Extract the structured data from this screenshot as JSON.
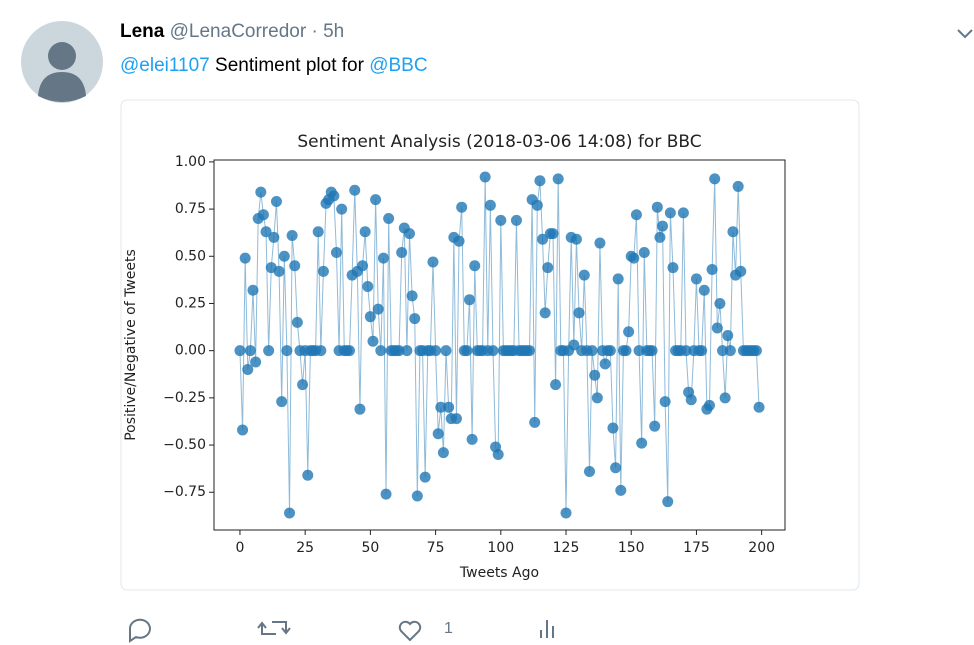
{
  "tweet": {
    "name": "Lena",
    "handle": "@LenaCorredor",
    "separator": "·",
    "time": "5h",
    "mention": "@elei1107",
    "text": "Sentiment plot for",
    "tag": "@BBC",
    "likes": "1"
  },
  "chart_data": {
    "type": "line",
    "title": "Sentiment Analysis (2018-03-06 14:08) for BBC",
    "x_label": "Tweets Ago",
    "y_label": "Positive/Negative of Tweets",
    "color": "#1f77b4",
    "markers": true,
    "xlim": [
      -9.95,
      208.95
    ],
    "ylim": [
      -0.95,
      1.01
    ],
    "xticks": [
      0,
      25,
      50,
      75,
      100,
      125,
      150,
      175,
      200
    ],
    "yticks": [
      {
        "value": -0.75,
        "label": "−0.75"
      },
      {
        "value": -0.5,
        "label": "−0.50"
      },
      {
        "value": -0.25,
        "label": "−0.25"
      },
      {
        "value": 0,
        "label": "0.00"
      },
      {
        "value": 0.25,
        "label": "0.25"
      },
      {
        "value": 0.5,
        "label": "0.50"
      },
      {
        "value": 0.75,
        "label": "0.75"
      },
      {
        "value": 1,
        "label": "1.00"
      }
    ],
    "x": [
      0,
      1,
      2,
      3,
      4,
      5,
      6,
      7,
      8,
      9,
      10,
      11,
      12,
      13,
      14,
      15,
      16,
      17,
      18,
      19,
      20,
      21,
      22,
      23,
      24,
      25,
      26,
      27,
      28,
      29,
      30,
      31,
      32,
      33,
      34,
      35,
      36,
      37,
      38,
      39,
      40,
      41,
      42,
      43,
      44,
      45,
      46,
      47,
      48,
      49,
      50,
      51,
      52,
      53,
      54,
      55,
      56,
      57,
      58,
      59,
      60,
      61,
      62,
      63,
      64,
      65,
      66,
      67,
      68,
      69,
      70,
      71,
      72,
      73,
      74,
      75,
      76,
      77,
      78,
      79,
      80,
      81,
      82,
      83,
      84,
      85,
      86,
      87,
      88,
      89,
      90,
      91,
      92,
      93,
      94,
      95,
      96,
      97,
      98,
      99,
      100,
      101,
      102,
      103,
      104,
      105,
      106,
      107,
      108,
      109,
      110,
      111,
      112,
      113,
      114,
      115,
      116,
      117,
      118,
      119,
      120,
      121,
      122,
      123,
      124,
      125,
      126,
      127,
      128,
      129,
      130,
      131,
      132,
      133,
      134,
      135,
      136,
      137,
      138,
      139,
      140,
      141,
      142,
      143,
      144,
      145,
      146,
      147,
      148,
      149,
      150,
      151,
      152,
      153,
      154,
      155,
      156,
      157,
      158,
      159,
      160,
      161,
      162,
      163,
      164,
      165,
      166,
      167,
      168,
      169,
      170,
      171,
      172,
      173,
      174,
      175,
      176,
      177,
      178,
      179,
      180,
      181,
      182,
      183,
      184,
      185,
      186,
      187,
      188,
      189,
      190,
      191,
      192,
      193,
      194,
      195,
      196,
      197,
      198,
      199
    ],
    "values": [
      0,
      -0.42,
      0.49,
      -0.1,
      0,
      0.32,
      -0.06,
      0.7,
      0.84,
      0.72,
      0.63,
      0,
      0.44,
      0.6,
      0.79,
      0.42,
      -0.27,
      0.5,
      0,
      -0.86,
      0.61,
      0.45,
      0.15,
      0,
      -0.18,
      0,
      -0.66,
      0,
      0,
      0,
      0.63,
      0,
      0.42,
      0.78,
      0.8,
      0.84,
      0.82,
      0.52,
      0,
      0.75,
      0,
      0,
      0,
      0.4,
      0.85,
      0.42,
      -0.31,
      0.45,
      0.63,
      0.34,
      0.18,
      0.05,
      0.8,
      0.22,
      0,
      0.49,
      -0.76,
      0.7,
      0,
      0,
      0,
      0,
      0.52,
      0.65,
      0,
      0.62,
      0.29,
      0.17,
      -0.77,
      0,
      0,
      -0.67,
      0,
      0,
      0.47,
      0,
      -0.44,
      -0.3,
      -0.54,
      0,
      -0.3,
      -0.36,
      0.6,
      -0.36,
      0.58,
      0.76,
      0,
      0,
      0.27,
      -0.47,
      0.45,
      0,
      0,
      0,
      0.92,
      0,
      0.77,
      0,
      -0.51,
      -0.55,
      0.69,
      0,
      0,
      0,
      0,
      0,
      0.69,
      0,
      0,
      0,
      0,
      0,
      0.8,
      -0.38,
      0.77,
      0.9,
      0.59,
      0.2,
      0.44,
      0.62,
      0.62,
      -0.18,
      0.91,
      0,
      0,
      -0.86,
      0,
      0.6,
      0.03,
      0.59,
      0.2,
      0,
      0.4,
      0,
      -0.64,
      0,
      -0.13,
      -0.25,
      0.57,
      0,
      -0.07,
      0,
      0,
      -0.41,
      -0.62,
      0.38,
      -0.74,
      0,
      0,
      0.1,
      0.5,
      0.49,
      0.72,
      0,
      -0.49,
      0.52,
      0,
      0,
      0,
      -0.4,
      0.76,
      0.6,
      0.66,
      -0.27,
      -0.8,
      0.73,
      0.44,
      0,
      0,
      0,
      0.73,
      0,
      -0.22,
      -0.26,
      0,
      0.38,
      0,
      0,
      0.32,
      -0.31,
      -0.29,
      0.43,
      0.91,
      0.12,
      0.25,
      0,
      -0.25,
      0.08,
      0,
      0.63,
      0.4,
      0.87,
      0.42,
      0,
      0,
      0,
      0,
      0,
      0,
      -0.3
    ]
  }
}
